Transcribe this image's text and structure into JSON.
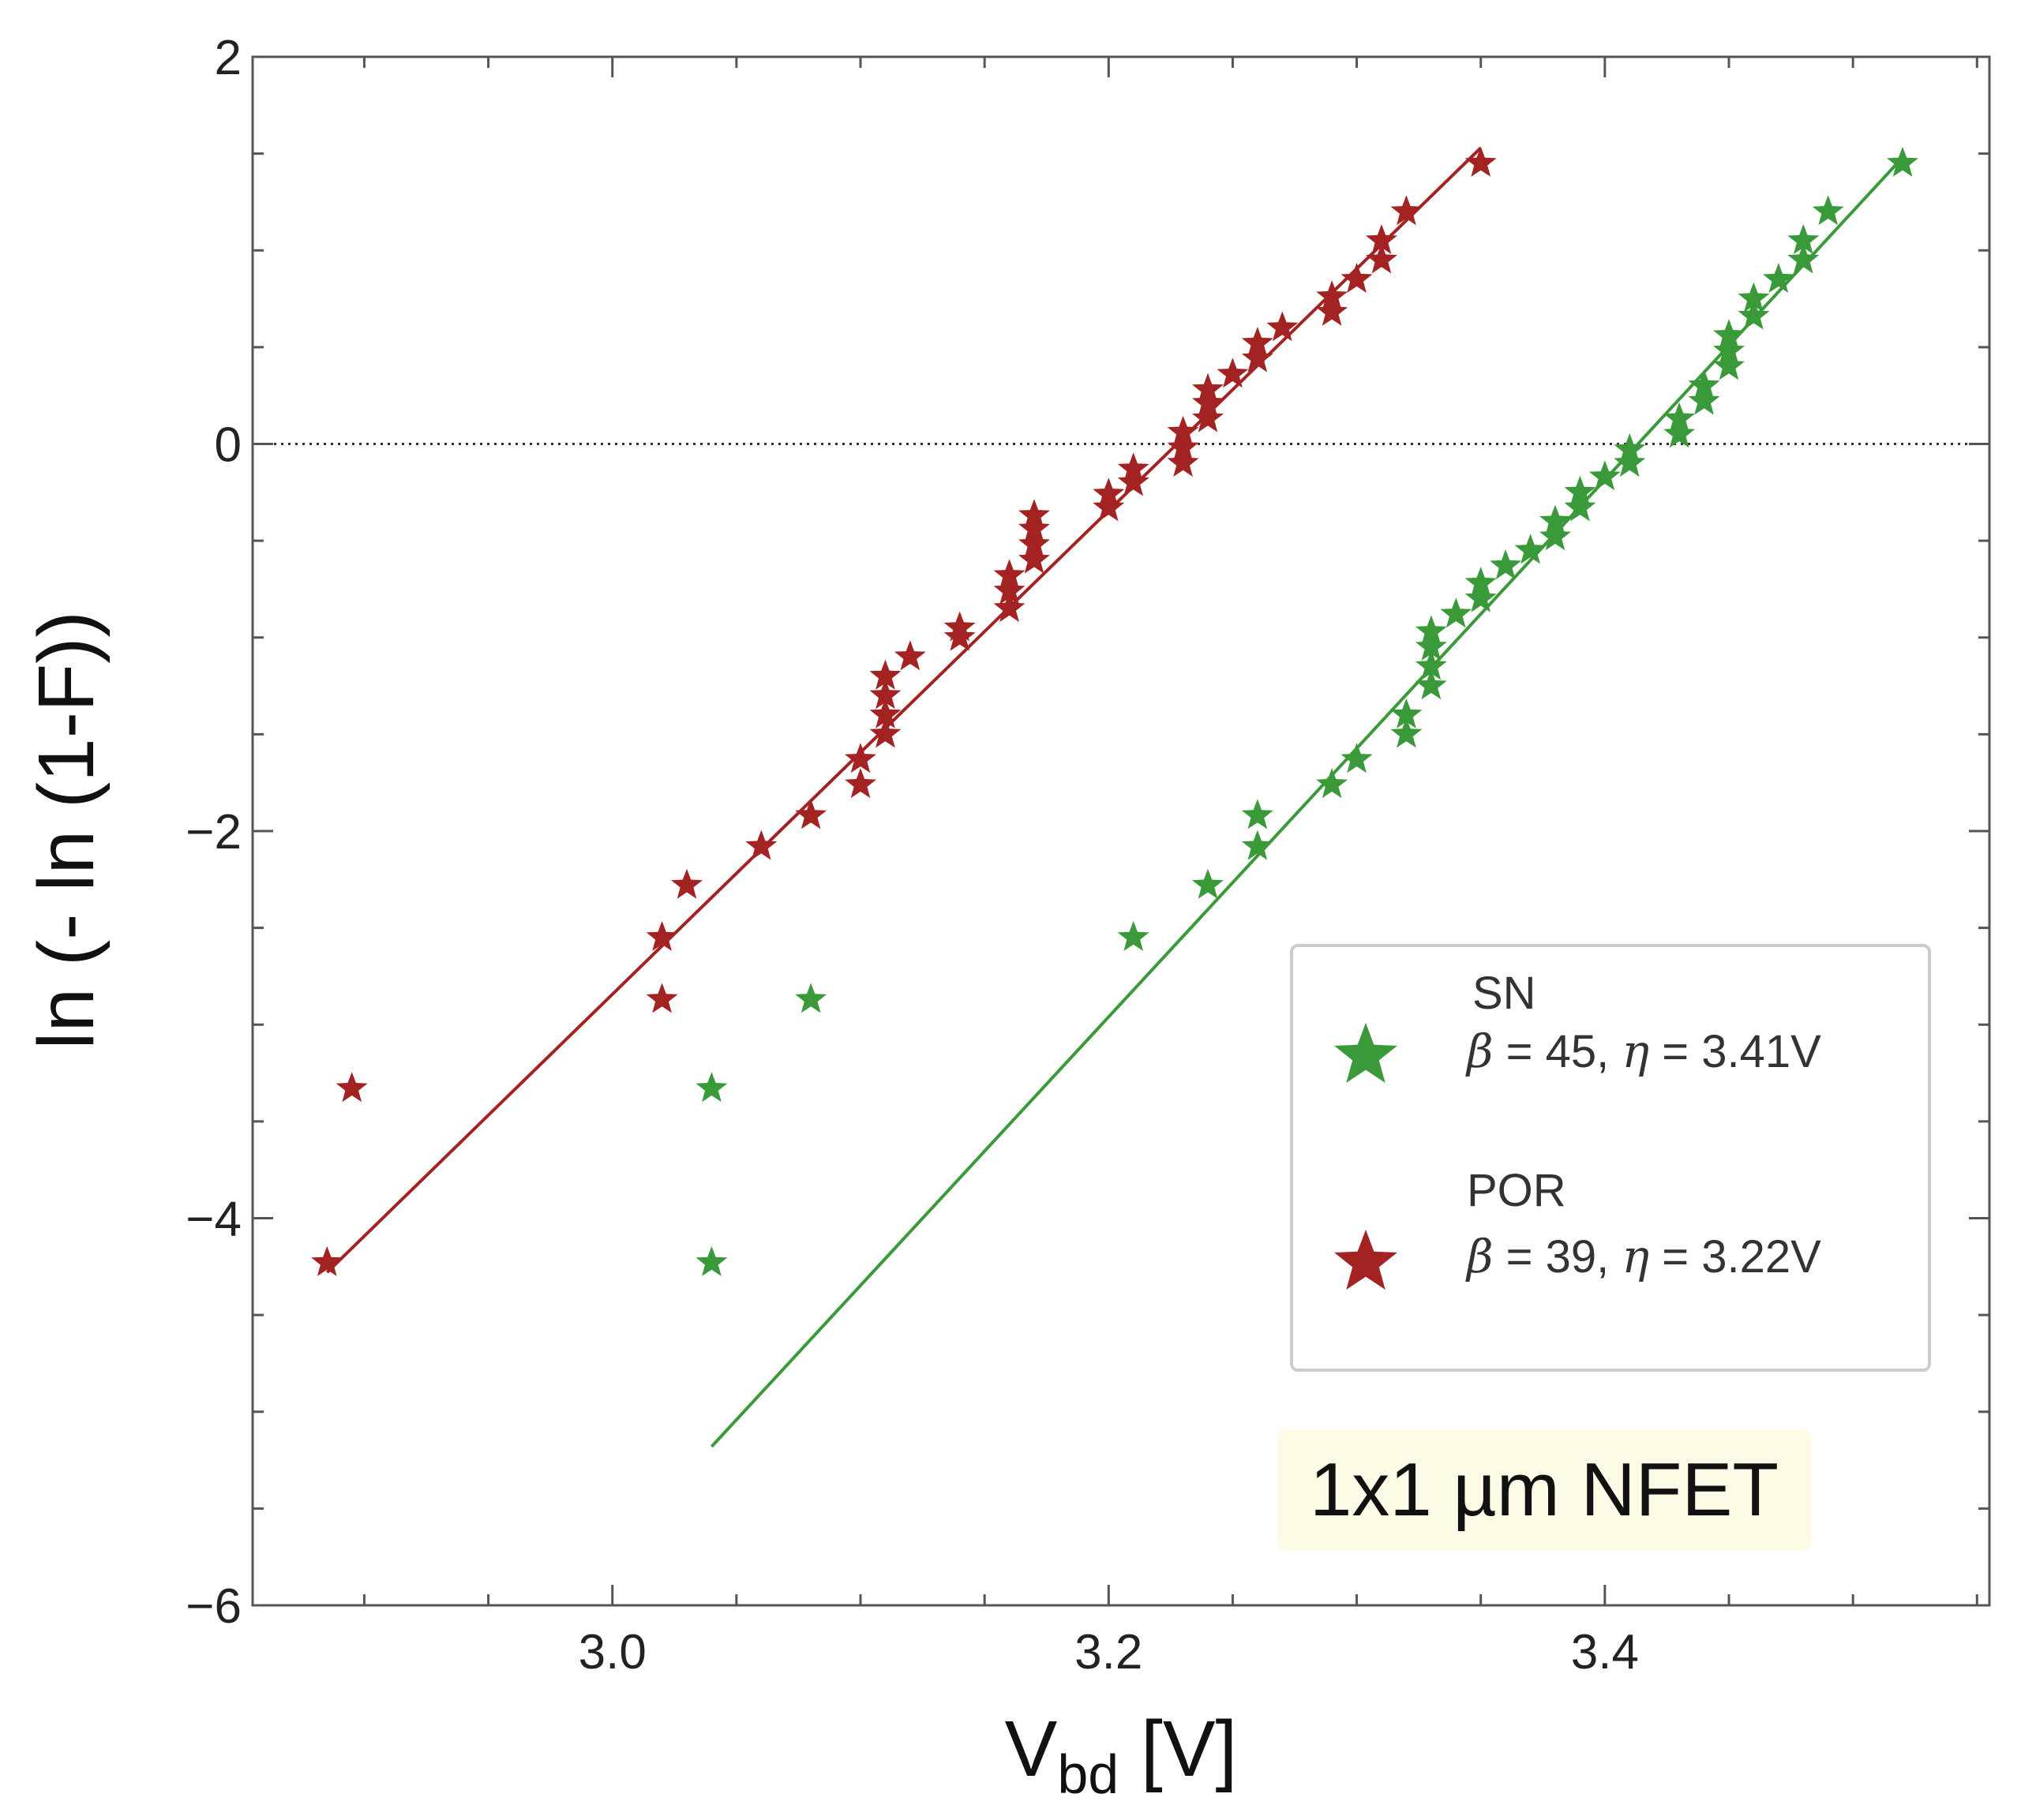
{
  "chart_data": {
    "type": "scatter",
    "title": "",
    "xlabel_main": "V",
    "xlabel_sub": "bd",
    "xlabel_unit": " [V]",
    "ylabel": "ln (- ln (1-F))",
    "xlim": [
      2.855,
      3.555
    ],
    "ylim": [
      -6,
      2
    ],
    "xticks": [
      3.0,
      3.2,
      3.4
    ],
    "xtick_labels": [
      "3.0",
      "3.2",
      "3.4"
    ],
    "yticks": [
      2,
      0,
      -2,
      -4,
      -6
    ],
    "ytick_labels": [
      "2",
      "0",
      "−2",
      "−4",
      "−6"
    ],
    "reference_line": {
      "y": 0,
      "style": "dotted"
    },
    "annotation": "1x1 µm NFET",
    "series": [
      {
        "name": "SN",
        "beta_label": "β",
        "beta": "45",
        "eta_label": "η",
        "eta": "3.41V",
        "color": "#3a9a3a",
        "fit_line": {
          "x": [
            3.04,
            3.52
          ],
          "y": [
            -5.18,
            1.48
          ]
        },
        "points": [
          [
            3.04,
            -3.33
          ],
          [
            3.04,
            -4.23
          ],
          [
            3.08,
            -2.87
          ],
          [
            3.21,
            -2.55
          ],
          [
            3.24,
            -2.28
          ],
          [
            3.26,
            -1.92
          ],
          [
            3.26,
            -2.08
          ],
          [
            3.29,
            -1.76
          ],
          [
            3.3,
            -1.63
          ],
          [
            3.32,
            -1.4
          ],
          [
            3.32,
            -1.5
          ],
          [
            3.33,
            -1.25
          ],
          [
            3.33,
            -1.15
          ],
          [
            3.33,
            -1.05
          ],
          [
            3.33,
            -0.97
          ],
          [
            3.34,
            -0.88
          ],
          [
            3.35,
            -0.8
          ],
          [
            3.35,
            -0.72
          ],
          [
            3.36,
            -0.63
          ],
          [
            3.37,
            -0.55
          ],
          [
            3.38,
            -0.48
          ],
          [
            3.38,
            -0.4
          ],
          [
            3.39,
            -0.33
          ],
          [
            3.39,
            -0.25
          ],
          [
            3.4,
            -0.17
          ],
          [
            3.41,
            -0.1
          ],
          [
            3.41,
            -0.03
          ],
          [
            3.43,
            0.05
          ],
          [
            3.43,
            0.13
          ],
          [
            3.44,
            0.22
          ],
          [
            3.44,
            0.3
          ],
          [
            3.45,
            0.4
          ],
          [
            3.45,
            0.48
          ],
          [
            3.45,
            0.56
          ],
          [
            3.46,
            0.66
          ],
          [
            3.46,
            0.75
          ],
          [
            3.47,
            0.85
          ],
          [
            3.48,
            0.95
          ],
          [
            3.48,
            1.05
          ],
          [
            3.49,
            1.2
          ],
          [
            3.52,
            1.45
          ]
        ]
      },
      {
        "name": "POR",
        "beta_label": "β",
        "beta": "39",
        "eta_label": "η",
        "eta": "3.22V",
        "color": "#a32222",
        "fit_line": {
          "x": [
            2.885,
            3.35
          ],
          "y": [
            -4.28,
            1.53
          ]
        },
        "points": [
          [
            2.885,
            -4.23
          ],
          [
            2.895,
            -3.33
          ],
          [
            3.02,
            -2.87
          ],
          [
            3.02,
            -2.55
          ],
          [
            3.03,
            -2.28
          ],
          [
            3.06,
            -2.08
          ],
          [
            3.08,
            -1.92
          ],
          [
            3.1,
            -1.76
          ],
          [
            3.1,
            -1.63
          ],
          [
            3.11,
            -1.5
          ],
          [
            3.11,
            -1.4
          ],
          [
            3.11,
            -1.3
          ],
          [
            3.11,
            -1.2
          ],
          [
            3.12,
            -1.1
          ],
          [
            3.14,
            -1.0
          ],
          [
            3.14,
            -0.95
          ],
          [
            3.16,
            -0.85
          ],
          [
            3.16,
            -0.76
          ],
          [
            3.16,
            -0.68
          ],
          [
            3.17,
            -0.6
          ],
          [
            3.17,
            -0.52
          ],
          [
            3.17,
            -0.44
          ],
          [
            3.17,
            -0.37
          ],
          [
            3.2,
            -0.33
          ],
          [
            3.2,
            -0.26
          ],
          [
            3.21,
            -0.2
          ],
          [
            3.21,
            -0.13
          ],
          [
            3.23,
            -0.1
          ],
          [
            3.23,
            -0.02
          ],
          [
            3.23,
            0.06
          ],
          [
            3.24,
            0.13
          ],
          [
            3.24,
            0.21
          ],
          [
            3.24,
            0.28
          ],
          [
            3.25,
            0.36
          ],
          [
            3.26,
            0.44
          ],
          [
            3.26,
            0.52
          ],
          [
            3.27,
            0.6
          ],
          [
            3.29,
            0.68
          ],
          [
            3.29,
            0.76
          ],
          [
            3.3,
            0.85
          ],
          [
            3.31,
            0.95
          ],
          [
            3.31,
            1.05
          ],
          [
            3.32,
            1.2
          ],
          [
            3.35,
            1.45
          ]
        ]
      }
    ]
  }
}
